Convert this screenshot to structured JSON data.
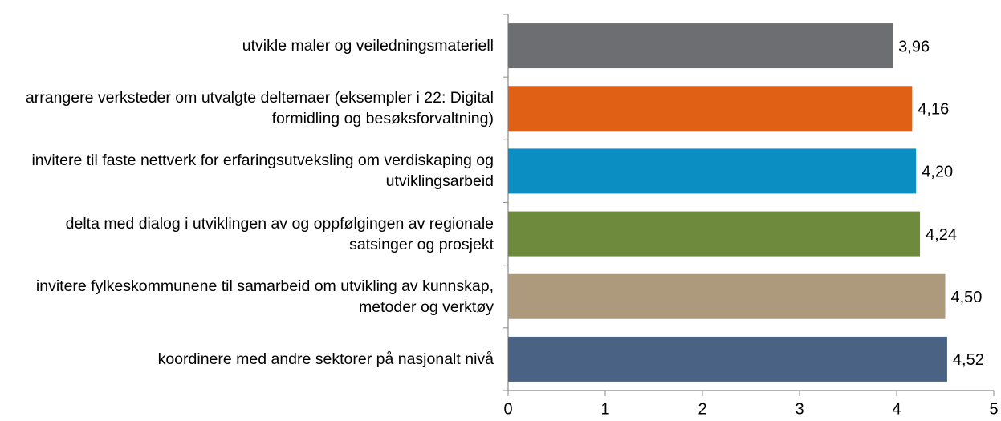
{
  "chart_data": {
    "type": "barh",
    "categories": [
      "utvikle maler og veiledningsmateriell",
      "arrangere verksteder om utvalgte deltemaer (eksempler i 22: Digital formidling og besøksforvaltning)",
      "invitere til faste nettverk for erfaringsutveksling om verdiskaping og utviklingsarbeid",
      "delta med dialog i utviklingen av og oppfølgingen av regionale satsinger og prosjekt",
      "invitere fylkeskommunene til samarbeid om utvikling av kunnskap, metoder og verktøy",
      "koordinere med andre sektorer på nasjonalt nivå"
    ],
    "values": [
      3.96,
      4.16,
      4.2,
      4.24,
      4.5,
      4.52
    ],
    "value_labels": [
      "3,96",
      "4,16",
      "4,20",
      "4,24",
      "4,50",
      "4,52"
    ],
    "colors": [
      "#6d6e71",
      "#e06016",
      "#0b8fc3",
      "#6e8b3d",
      "#ad9a7c",
      "#4a6283"
    ],
    "xlim": [
      0,
      5
    ],
    "xticks": [
      0,
      1,
      2,
      3,
      4,
      5
    ],
    "grid": false
  }
}
